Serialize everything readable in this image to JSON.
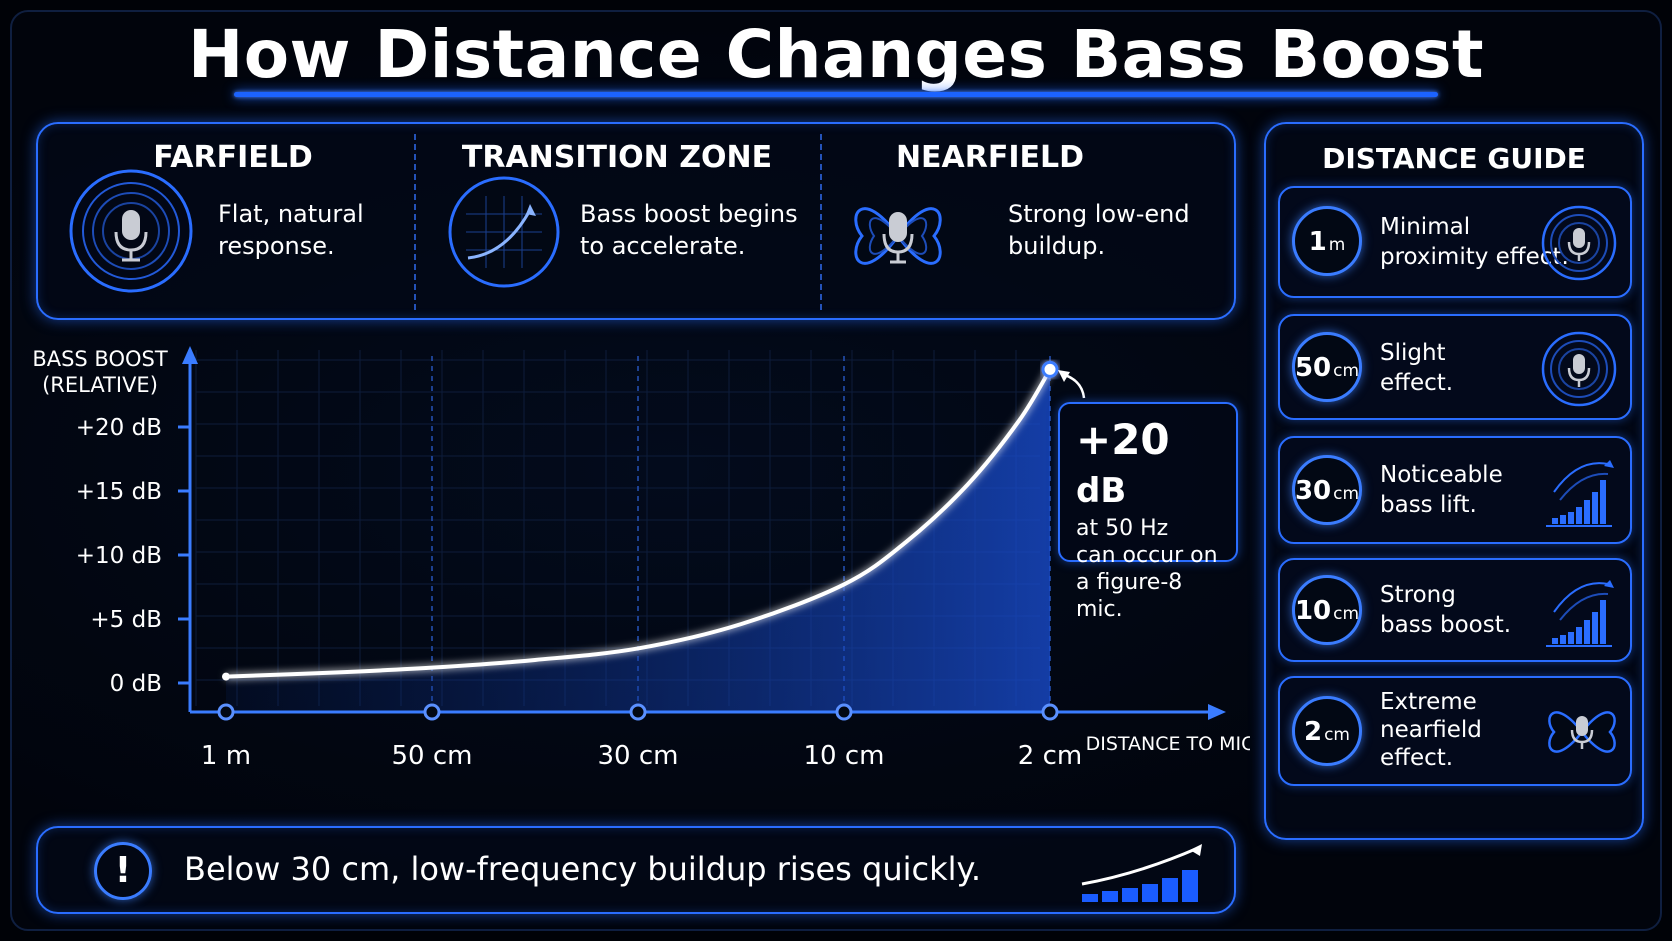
{
  "title": "How Distance Changes Bass Boost",
  "zones": [
    {
      "title": "FARFIELD",
      "text": [
        "Flat, natural",
        "response."
      ],
      "icon": "mic-rings-icon"
    },
    {
      "title": "TRANSITION ZONE",
      "text": [
        "Bass boost begins",
        "to accelerate."
      ],
      "icon": "curve-graph-icon"
    },
    {
      "title": "NEARFIELD",
      "text": [
        "Strong low-end",
        "buildup."
      ],
      "icon": "figure-8-mic-icon"
    }
  ],
  "guide": {
    "title": "DISTANCE GUIDE",
    "cards": [
      {
        "num": "1",
        "unit": "m",
        "text": [
          "Minimal",
          "proximity effect."
        ],
        "icon": "mic-rings-icon"
      },
      {
        "num": "50",
        "unit": "cm",
        "text": [
          "Slight",
          "effect."
        ],
        "icon": "mic-rings-icon"
      },
      {
        "num": "30",
        "unit": "cm",
        "text": [
          "Noticeable",
          "bass lift."
        ],
        "icon": "rising-bars-icon"
      },
      {
        "num": "10",
        "unit": "cm",
        "text": [
          "Strong",
          "bass boost."
        ],
        "icon": "rising-bars-icon"
      },
      {
        "num": "2",
        "unit": "cm",
        "text": [
          "Extreme",
          "nearfield",
          "effect."
        ],
        "icon": "figure-8-mic-icon"
      }
    ]
  },
  "chart_data": {
    "type": "line",
    "ylabel": [
      "BASS BOOST",
      "(RELATIVE)"
    ],
    "xlabel": "DISTANCE TO MIC",
    "categories": [
      "1 m",
      "50 cm",
      "30 cm",
      "10 cm",
      "2 cm"
    ],
    "y_ticks": [
      "+20 dB",
      "+15 dB",
      "+10 dB",
      "+5 dB",
      "0 dB"
    ],
    "y_tick_values": [
      20,
      15,
      10,
      5,
      0
    ],
    "ylim": [
      0,
      25
    ],
    "series": [
      {
        "values": [
          0.5,
          1.2,
          2.7,
          7.7,
          24.5
        ]
      }
    ],
    "curve_points": [
      {
        "x": 0,
        "y": 0.5
      },
      {
        "x": 0.5,
        "y": 0.8
      },
      {
        "x": 1,
        "y": 1.2
      },
      {
        "x": 1.5,
        "y": 1.8
      },
      {
        "x": 2,
        "y": 2.7
      },
      {
        "x": 2.5,
        "y": 4.6
      },
      {
        "x": 3,
        "y": 7.7
      },
      {
        "x": 3.3,
        "y": 11
      },
      {
        "x": 3.6,
        "y": 15.5
      },
      {
        "x": 3.85,
        "y": 20.5
      },
      {
        "x": 4,
        "y": 24.5
      }
    ],
    "grid": true
  },
  "callout": {
    "value": "+20",
    "unit": "dB",
    "lines": [
      "at 50 Hz",
      "can occur on",
      "a figure-8 mic."
    ]
  },
  "footer": {
    "alert": "!",
    "text": "Below 30 cm, low-frequency buildup rises quickly."
  },
  "colors": {
    "accent": "#2a6dff",
    "glow": "#5a90ff",
    "background": "#000207"
  }
}
